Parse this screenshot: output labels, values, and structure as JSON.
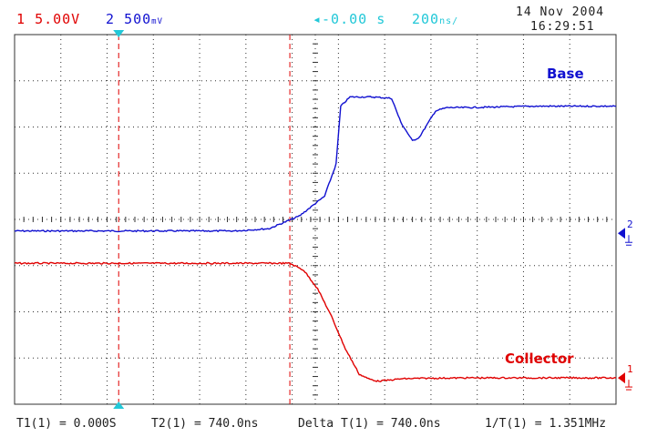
{
  "header": {
    "ch1_number": "1",
    "ch1_scale": "5.00V",
    "ch2_number": "2",
    "ch2_scale": "500",
    "ch2_unit": "mV",
    "time_offset": "-0.00 s",
    "timebase": "200",
    "timebase_unit": "ns/",
    "date": "14 Nov 2004",
    "time": "16:29:51"
  },
  "footer": {
    "t1": "T1(1) = 0.000S",
    "t2": "T2(1) = 740.0ns",
    "delta": "Delta T(1) = 740.0ns",
    "inv": "1/T(1) = 1.351MHz"
  },
  "colors": {
    "ch1": "#e00000",
    "ch2": "#1010d0",
    "cursor": "#22c8d8",
    "grid": "#303030"
  },
  "chart_data": {
    "type": "line",
    "grid": true,
    "x_divisions": 13,
    "y_divisions": 8,
    "xlim": [
      -450,
      2150
    ],
    "series": [
      {
        "name": "Base",
        "color": "#1010d0",
        "x": [
          -450,
          0,
          500,
          650,
          780,
          890,
          940,
          960,
          1000,
          1100,
          1180,
          1220,
          1270,
          1300,
          1370,
          1420,
          1500,
          1800,
          2150
        ],
        "y": [
          3.75,
          3.75,
          3.75,
          3.8,
          4.07,
          4.5,
          5.2,
          6.45,
          6.65,
          6.65,
          6.62,
          6.1,
          5.7,
          5.78,
          6.35,
          6.42,
          6.42,
          6.45,
          6.45
        ]
      },
      {
        "name": "Collector",
        "color": "#e00000",
        "x": [
          -450,
          0,
          500,
          740,
          800,
          860,
          920,
          980,
          1040,
          1080,
          1120,
          1170,
          1220,
          1300,
          1500,
          1800,
          2150
        ],
        "y": [
          3.05,
          3.05,
          3.05,
          3.05,
          2.9,
          2.5,
          1.9,
          1.2,
          0.65,
          0.55,
          0.5,
          0.52,
          0.55,
          0.56,
          0.57,
          0.57,
          0.57
        ]
      }
    ],
    "cursors": [
      {
        "name": "T1",
        "x": 0
      },
      {
        "name": "T2",
        "x": 740
      }
    ],
    "channel_markers": [
      {
        "label": "1",
        "y": 0.57,
        "color": "#e00000"
      },
      {
        "label": "2",
        "y": 3.7,
        "color": "#1010d0"
      }
    ]
  }
}
